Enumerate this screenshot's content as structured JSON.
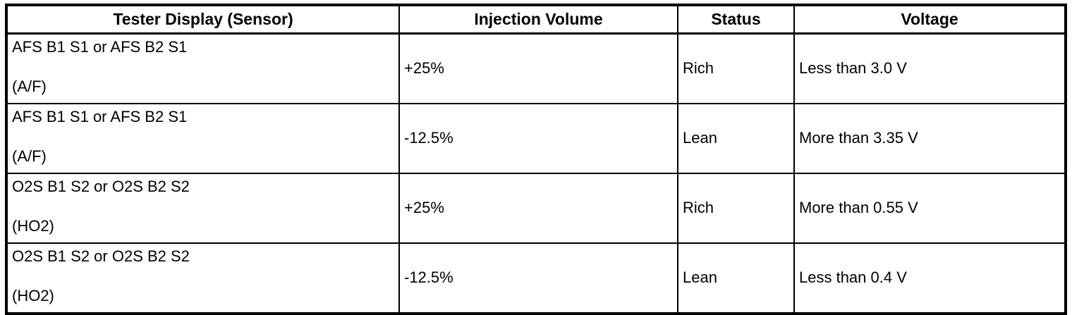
{
  "table": {
    "headers": {
      "sensor": "Tester Display (Sensor)",
      "injection_volume": "Injection Volume",
      "status": "Status",
      "voltage": "Voltage"
    },
    "rows": [
      {
        "sensor_line1": "AFS B1 S1 or AFS B2 S1",
        "sensor_line2": "(A/F)",
        "injection_volume": "+25%",
        "status": "Rich",
        "voltage": "Less than 3.0 V"
      },
      {
        "sensor_line1": "AFS B1 S1 or AFS B2 S1",
        "sensor_line2": "(A/F)",
        "injection_volume": "-12.5%",
        "status": "Lean",
        "voltage": "More than 3.35 V"
      },
      {
        "sensor_line1": "O2S B1 S2 or O2S B2 S2",
        "sensor_line2": "(HO2)",
        "injection_volume": "+25%",
        "status": "Rich",
        "voltage": "More than 0.55 V"
      },
      {
        "sensor_line1": "O2S B1 S2 or O2S B2 S2",
        "sensor_line2": "(HO2)",
        "injection_volume": "-12.5%",
        "status": "Lean",
        "voltage": "Less than 0.4 V"
      }
    ],
    "colors": {
      "border": "#000000",
      "background": "#ffffff",
      "text": "#000000"
    }
  }
}
